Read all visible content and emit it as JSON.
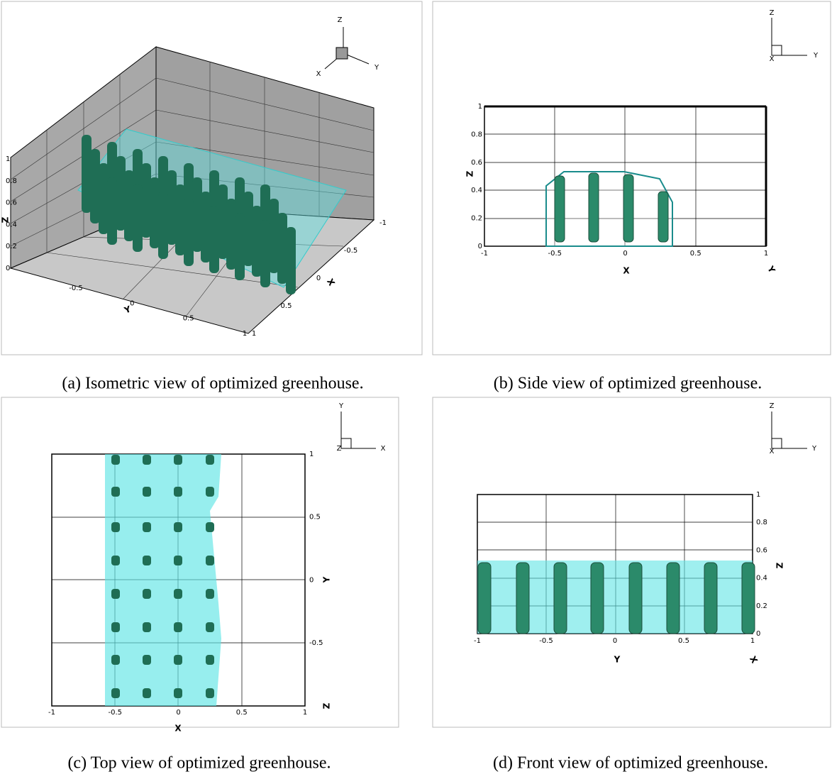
{
  "panels": [
    {
      "caption": "(a) Isometric view of optimized greenhouse.",
      "triad_labels": [
        "Z",
        "Y",
        "X"
      ],
      "axis_titles": [
        "Z",
        "Y",
        "X"
      ],
      "tick_groups": [
        [
          "0",
          "0.2",
          "0.4",
          "0.6",
          "0.8",
          "1"
        ],
        [
          "-0.5",
          "0",
          "0.5",
          "1"
        ],
        [
          "-1",
          "-0.5",
          "0",
          "0.5",
          "1"
        ]
      ]
    },
    {
      "caption": "(b) Side view of optimized greenhouse.",
      "triad_labels": [
        "Z",
        "X",
        "Y"
      ],
      "axis_titles": [
        "Z",
        "X",
        "Y"
      ],
      "tick_groups": [
        [
          "0",
          "0.2",
          "0.4",
          "0.6",
          "0.8",
          "1"
        ],
        [
          "-1",
          "-0.5",
          "0",
          "0.5",
          "1"
        ]
      ]
    },
    {
      "caption": "(c) Top view of optimized greenhouse.",
      "triad_labels": [
        "Y",
        "Z",
        "X"
      ],
      "axis_titles": [
        "X",
        "Y",
        "Z"
      ],
      "tick_groups": [
        [
          "-1",
          "-0.5",
          "0",
          "0.5",
          "1"
        ],
        [
          "1",
          "0.5",
          "0",
          "-0.5"
        ]
      ]
    },
    {
      "caption": "(d) Front view of optimized greenhouse.",
      "triad_labels": [
        "Z",
        "X",
        "Y"
      ],
      "axis_titles": [
        "Y",
        "Z",
        "X"
      ],
      "tick_groups": [
        [
          "-1",
          "-0.5",
          "0",
          "0.5",
          "1"
        ],
        [
          "1",
          "0.8",
          "0.6",
          "0.4",
          "0.2",
          "0"
        ]
      ]
    }
  ]
}
